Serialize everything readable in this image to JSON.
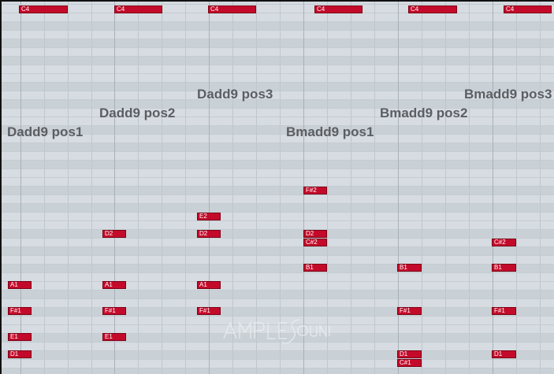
{
  "piano_roll": {
    "top_row_label": "C4",
    "chord_labels": [
      "Dadd9 pos1",
      "Dadd9 pos2",
      "Dadd9 pos3",
      "Bmadd9 pos1",
      "Bmadd9 pos2",
      "Bmadd9 pos3"
    ],
    "notes": {
      "c4": [
        "C4",
        "C4",
        "C4",
        "C4",
        "C4",
        "C4"
      ],
      "fs2": "F#2",
      "e2": "E2",
      "d2": [
        "D2",
        "D2",
        "D2"
      ],
      "cs2": [
        "C#2",
        "C#2"
      ],
      "b1": [
        "B1",
        "B1",
        "B1"
      ],
      "a1": [
        "A1",
        "A1",
        "A1"
      ],
      "fs1": [
        "F#1",
        "F#1",
        "F#1",
        "F#1",
        "F#1"
      ],
      "e1": [
        "E1",
        "E1"
      ],
      "d1": [
        "D1",
        "D1",
        "D1"
      ],
      "cs1": "C#1"
    },
    "colors": {
      "note_fill": "#c40a2a",
      "background": "#d4dadf",
      "label_text": "#5b5e62"
    }
  }
}
